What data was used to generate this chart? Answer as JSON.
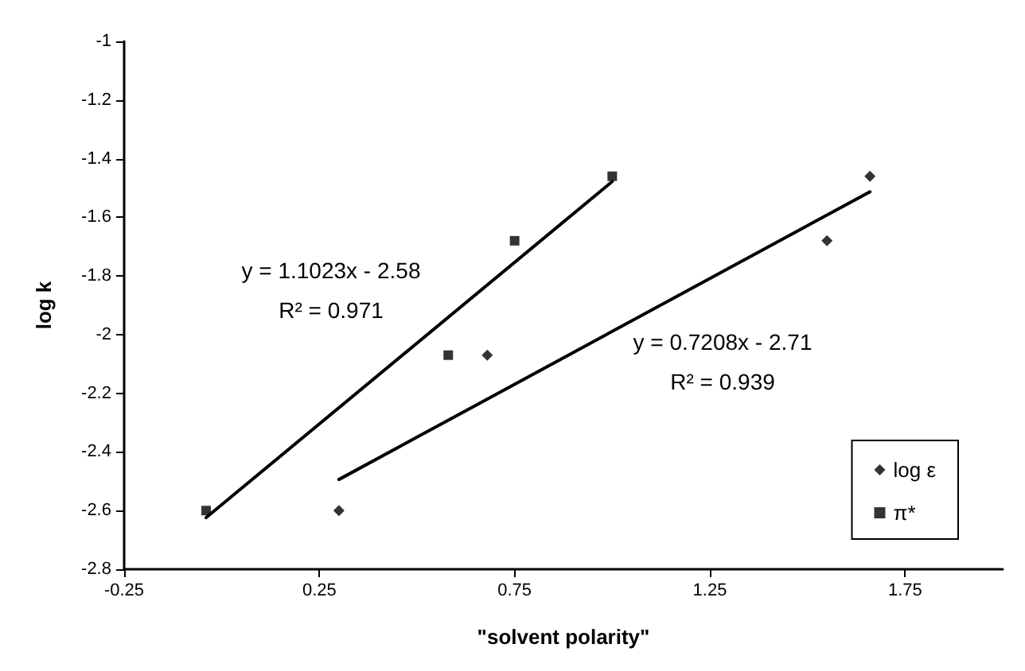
{
  "chart_data": {
    "type": "scatter",
    "xlabel": "\"solvent polarity\"",
    "ylabel": "log k",
    "xlim": [
      -0.25,
      2
    ],
    "xticks": [
      -0.25,
      0.25,
      0.75,
      1.25,
      1.75
    ],
    "ylim": [
      -2.8,
      -1
    ],
    "yticks": [
      -2.8,
      -2.6,
      -2.4,
      -2.2,
      -2,
      -1.8,
      -1.6,
      -1.4,
      -1.2,
      -1
    ],
    "grid": false,
    "legend": "bottom right",
    "series": [
      {
        "name": "log ε",
        "color": "#000000",
        "marker": "diamond",
        "x": [
          0.3,
          0.68,
          1.55,
          1.66
        ],
        "values": [
          -2.6,
          -2.07,
          -1.68,
          -1.46
        ]
      },
      {
        "name": "π*",
        "color": "#000000",
        "marker": "square",
        "x": [
          -0.04,
          0.58,
          0.75,
          1.0
        ],
        "values": [
          -2.6,
          -2.07,
          -1.68,
          -1.46
        ]
      },
      {
        "type": "line",
        "color": "#000000",
        "marker": "none",
        "line_style": "solid",
        "x": [
          -0.04,
          1.0
        ],
        "values": [
          -2.624,
          -1.478
        ]
      },
      {
        "type": "line",
        "color": "#000000",
        "marker": "none",
        "line_style": "solid",
        "x": [
          0.3,
          1.66
        ],
        "values": [
          -2.494,
          -1.513
        ]
      }
    ],
    "annotations": [
      "y = 1.1023x - 2.58",
      "R² = 0.971",
      "y = 0.7208x - 2.71",
      "R² = 0.939"
    ]
  }
}
